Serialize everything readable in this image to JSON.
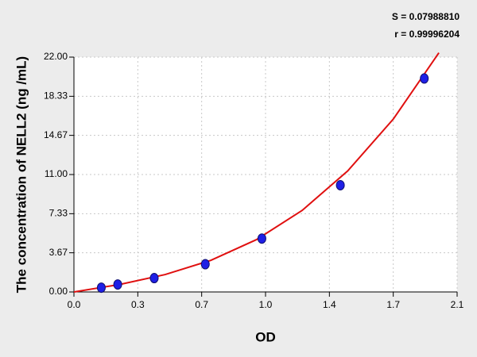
{
  "chart_data": {
    "type": "scatter",
    "annotations": [
      "S = 0.07988810",
      "r = 0.99996204"
    ],
    "xlabel": "OD",
    "ylabel": "The concentration of NELL2 (ng /mL)",
    "xlim": [
      0,
      2.1
    ],
    "ylim": [
      0,
      22
    ],
    "xticks": [
      {
        "value": 0,
        "label": "0.0"
      },
      {
        "value": 0.35,
        "label": "0.3"
      },
      {
        "value": 0.7,
        "label": "0.7"
      },
      {
        "value": 1.05,
        "label": "1.0"
      },
      {
        "value": 1.4,
        "label": "1.4"
      },
      {
        "value": 1.75,
        "label": "1.7"
      },
      {
        "value": 2.1,
        "label": "2.1"
      }
    ],
    "yticks": [
      {
        "value": 0,
        "label": "0.00"
      },
      3.67,
      7.33,
      {
        "value": 11,
        "label": "11.00"
      },
      14.67,
      18.33,
      {
        "value": 22,
        "label": "22.00"
      }
    ],
    "grid": true,
    "series": [
      {
        "type": "scatter",
        "color": "#1f1fe6",
        "x": [
          0.15,
          0.24,
          0.44,
          0.72,
          1.03,
          1.46,
          1.92
        ],
        "values": [
          0.4,
          0.7,
          1.3,
          2.6,
          5.0,
          10.0,
          20.0
        ]
      },
      {
        "type": "line",
        "color": "#e01010",
        "x": [
          0,
          0.25,
          0.5,
          0.75,
          1.0,
          1.25,
          1.5,
          1.75,
          2.0
        ],
        "values": [
          0,
          0.7,
          1.63,
          2.96,
          4.9,
          7.63,
          11.33,
          16.19,
          22.4
        ]
      }
    ]
  }
}
